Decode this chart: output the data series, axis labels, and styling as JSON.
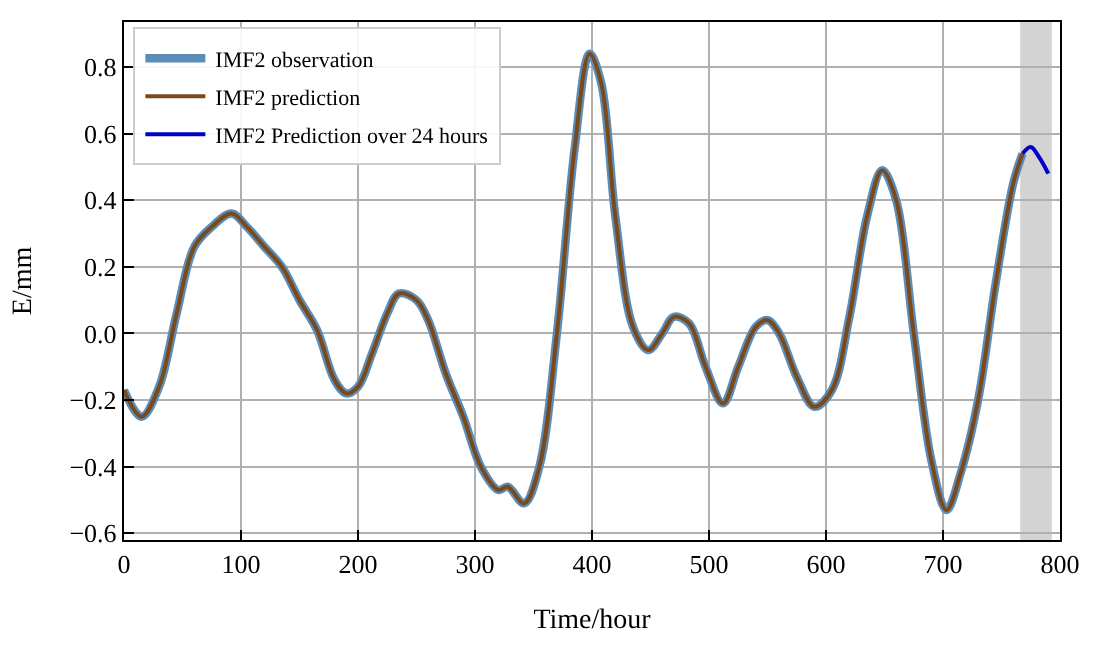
{
  "chart_data": {
    "type": "line",
    "xlabel": "Time/hour",
    "ylabel": "E/mm",
    "xlim": [
      0,
      800
    ],
    "ylim": [
      -0.62,
      0.935
    ],
    "xticks": [
      0,
      100,
      200,
      300,
      400,
      500,
      600,
      700,
      800
    ],
    "yticks": [
      {
        "value": -0.6,
        "label": "−0.6"
      },
      {
        "value": -0.4,
        "label": "−0.4"
      },
      {
        "value": -0.2,
        "label": "−0.2"
      },
      {
        "value": 0.0,
        "label": "0.0"
      },
      {
        "value": 0.2,
        "label": "0.2"
      },
      {
        "value": 0.4,
        "label": "0.4"
      },
      {
        "value": 0.6,
        "label": "0.6"
      },
      {
        "value": 0.8,
        "label": "0.8"
      }
    ],
    "grid": true,
    "legend": "top left",
    "line_style": "solid",
    "bands": [
      {
        "axis": "x",
        "from": 766,
        "to": 793,
        "color": "#d3d3d3"
      }
    ],
    "series": [
      {
        "name": "IMF2 observation",
        "color": "#5b8db8",
        "x": [
          0,
          15,
          30,
          45,
          60,
          75,
          92,
          105,
          120,
          135,
          150,
          165,
          180,
          190,
          200,
          212,
          225,
          235,
          250,
          260,
          275,
          290,
          305,
          320,
          328,
          342,
          355,
          370,
          385,
          398,
          408,
          420,
          435,
          448,
          460,
          470,
          483,
          497,
          512,
          525,
          540,
          550,
          560,
          575,
          590,
          605,
          620,
          635,
          648,
          660,
          675,
          690,
          703,
          715,
          730,
          745,
          760,
          768
        ],
        "values": [
          -0.17,
          -0.25,
          -0.16,
          0.06,
          0.26,
          0.32,
          0.36,
          0.32,
          0.26,
          0.2,
          0.1,
          0.01,
          -0.14,
          -0.18,
          -0.16,
          -0.06,
          0.06,
          0.12,
          0.1,
          0.04,
          -0.12,
          -0.25,
          -0.4,
          -0.47,
          -0.46,
          -0.51,
          -0.4,
          0.0,
          0.55,
          0.84,
          0.75,
          0.35,
          0.02,
          -0.05,
          0.0,
          0.05,
          0.03,
          -0.1,
          -0.21,
          -0.1,
          0.02,
          0.04,
          0.0,
          -0.13,
          -0.22,
          -0.17,
          0.05,
          0.35,
          0.49,
          0.4,
          0.0,
          -0.38,
          -0.53,
          -0.42,
          -0.2,
          0.15,
          0.45,
          0.54
        ]
      },
      {
        "name": "IMF2 prediction",
        "color": "#7a4a1c",
        "x": [
          0,
          15,
          30,
          45,
          60,
          75,
          92,
          105,
          120,
          135,
          150,
          165,
          180,
          190,
          200,
          212,
          225,
          235,
          250,
          260,
          275,
          290,
          305,
          320,
          328,
          342,
          355,
          370,
          385,
          398,
          408,
          420,
          435,
          448,
          460,
          470,
          483,
          497,
          512,
          525,
          540,
          550,
          560,
          575,
          590,
          605,
          620,
          635,
          648,
          660,
          675,
          690,
          703,
          715,
          730,
          745,
          760,
          768
        ],
        "values": [
          -0.17,
          -0.25,
          -0.16,
          0.06,
          0.26,
          0.32,
          0.36,
          0.32,
          0.26,
          0.2,
          0.1,
          0.01,
          -0.14,
          -0.18,
          -0.16,
          -0.06,
          0.06,
          0.12,
          0.1,
          0.04,
          -0.12,
          -0.25,
          -0.4,
          -0.47,
          -0.46,
          -0.51,
          -0.4,
          0.0,
          0.55,
          0.84,
          0.75,
          0.35,
          0.02,
          -0.05,
          0.0,
          0.05,
          0.03,
          -0.1,
          -0.21,
          -0.1,
          0.02,
          0.04,
          0.0,
          -0.13,
          -0.22,
          -0.17,
          0.05,
          0.35,
          0.49,
          0.4,
          0.0,
          -0.38,
          -0.53,
          -0.42,
          -0.2,
          0.15,
          0.45,
          0.54
        ]
      },
      {
        "name": "IMF2 Prediction over 24 hours",
        "color": "#0000cc",
        "x": [
          768,
          775,
          782,
          790
        ],
        "values": [
          0.54,
          0.56,
          0.53,
          0.48
        ]
      }
    ]
  }
}
